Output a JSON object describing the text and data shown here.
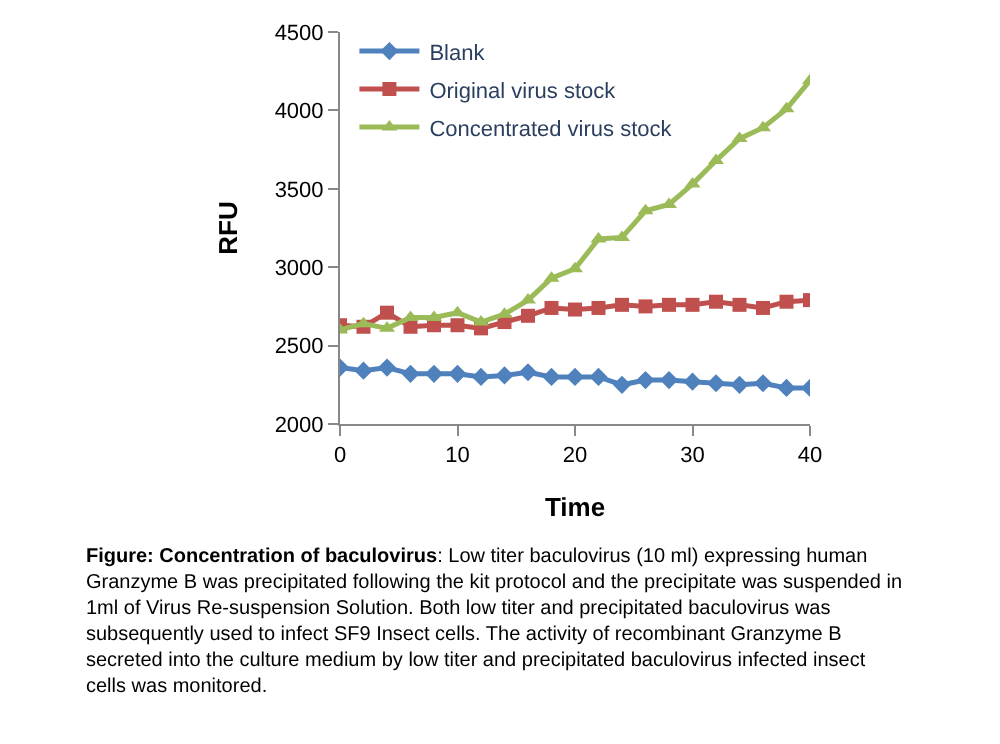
{
  "chart_data": {
    "type": "line",
    "xlabel": "Time",
    "ylabel": "RFU",
    "x": [
      0,
      2,
      4,
      6,
      8,
      10,
      12,
      14,
      16,
      18,
      20,
      22,
      24,
      26,
      28,
      30,
      32,
      34,
      36,
      38,
      40
    ],
    "series": [
      {
        "name": "Blank",
        "color": "#4f81bd",
        "marker": "diamond",
        "values": [
          2360,
          2340,
          2360,
          2320,
          2320,
          2320,
          2300,
          2310,
          2330,
          2300,
          2300,
          2300,
          2250,
          2280,
          2280,
          2270,
          2260,
          2250,
          2260,
          2230,
          2230
        ]
      },
      {
        "name": "Original virus stock",
        "color": "#c0504d",
        "marker": "square",
        "values": [
          2630,
          2620,
          2710,
          2620,
          2630,
          2630,
          2610,
          2650,
          2690,
          2740,
          2730,
          2740,
          2760,
          2750,
          2760,
          2760,
          2780,
          2760,
          2740,
          2780,
          2790
        ]
      },
      {
        "name": "Concentrated virus stock",
        "color": "#9bbb59",
        "marker": "triangle",
        "values": [
          2600,
          2640,
          2610,
          2680,
          2680,
          2710,
          2650,
          2700,
          2790,
          2930,
          2990,
          3180,
          3190,
          3360,
          3400,
          3530,
          3680,
          3820,
          3890,
          4010,
          4190
        ]
      }
    ],
    "xlim": [
      0,
      40
    ],
    "xticks": [
      0,
      10,
      20,
      30,
      40
    ],
    "ylim": [
      2000,
      4500
    ],
    "yticks": [
      2000,
      2500,
      3000,
      3500,
      4000,
      4500
    ],
    "legend": "top left",
    "annotations": [
      "Figure: Concentration of baculovirus: Low titer baculovirus (10 ml) expressing human Granzyme B was precipitated following the kit protocol and the precipitate was suspended in 1ml of Virus Re-suspension Solution. Both low titer and precipitated baculovirus was subsequently used to infect SF9 Insect cells. The activity of recombinant Granzyme B secreted into the culture medium by low titer and precipitated baculovirus infected insect cells was monitored."
    ]
  }
}
